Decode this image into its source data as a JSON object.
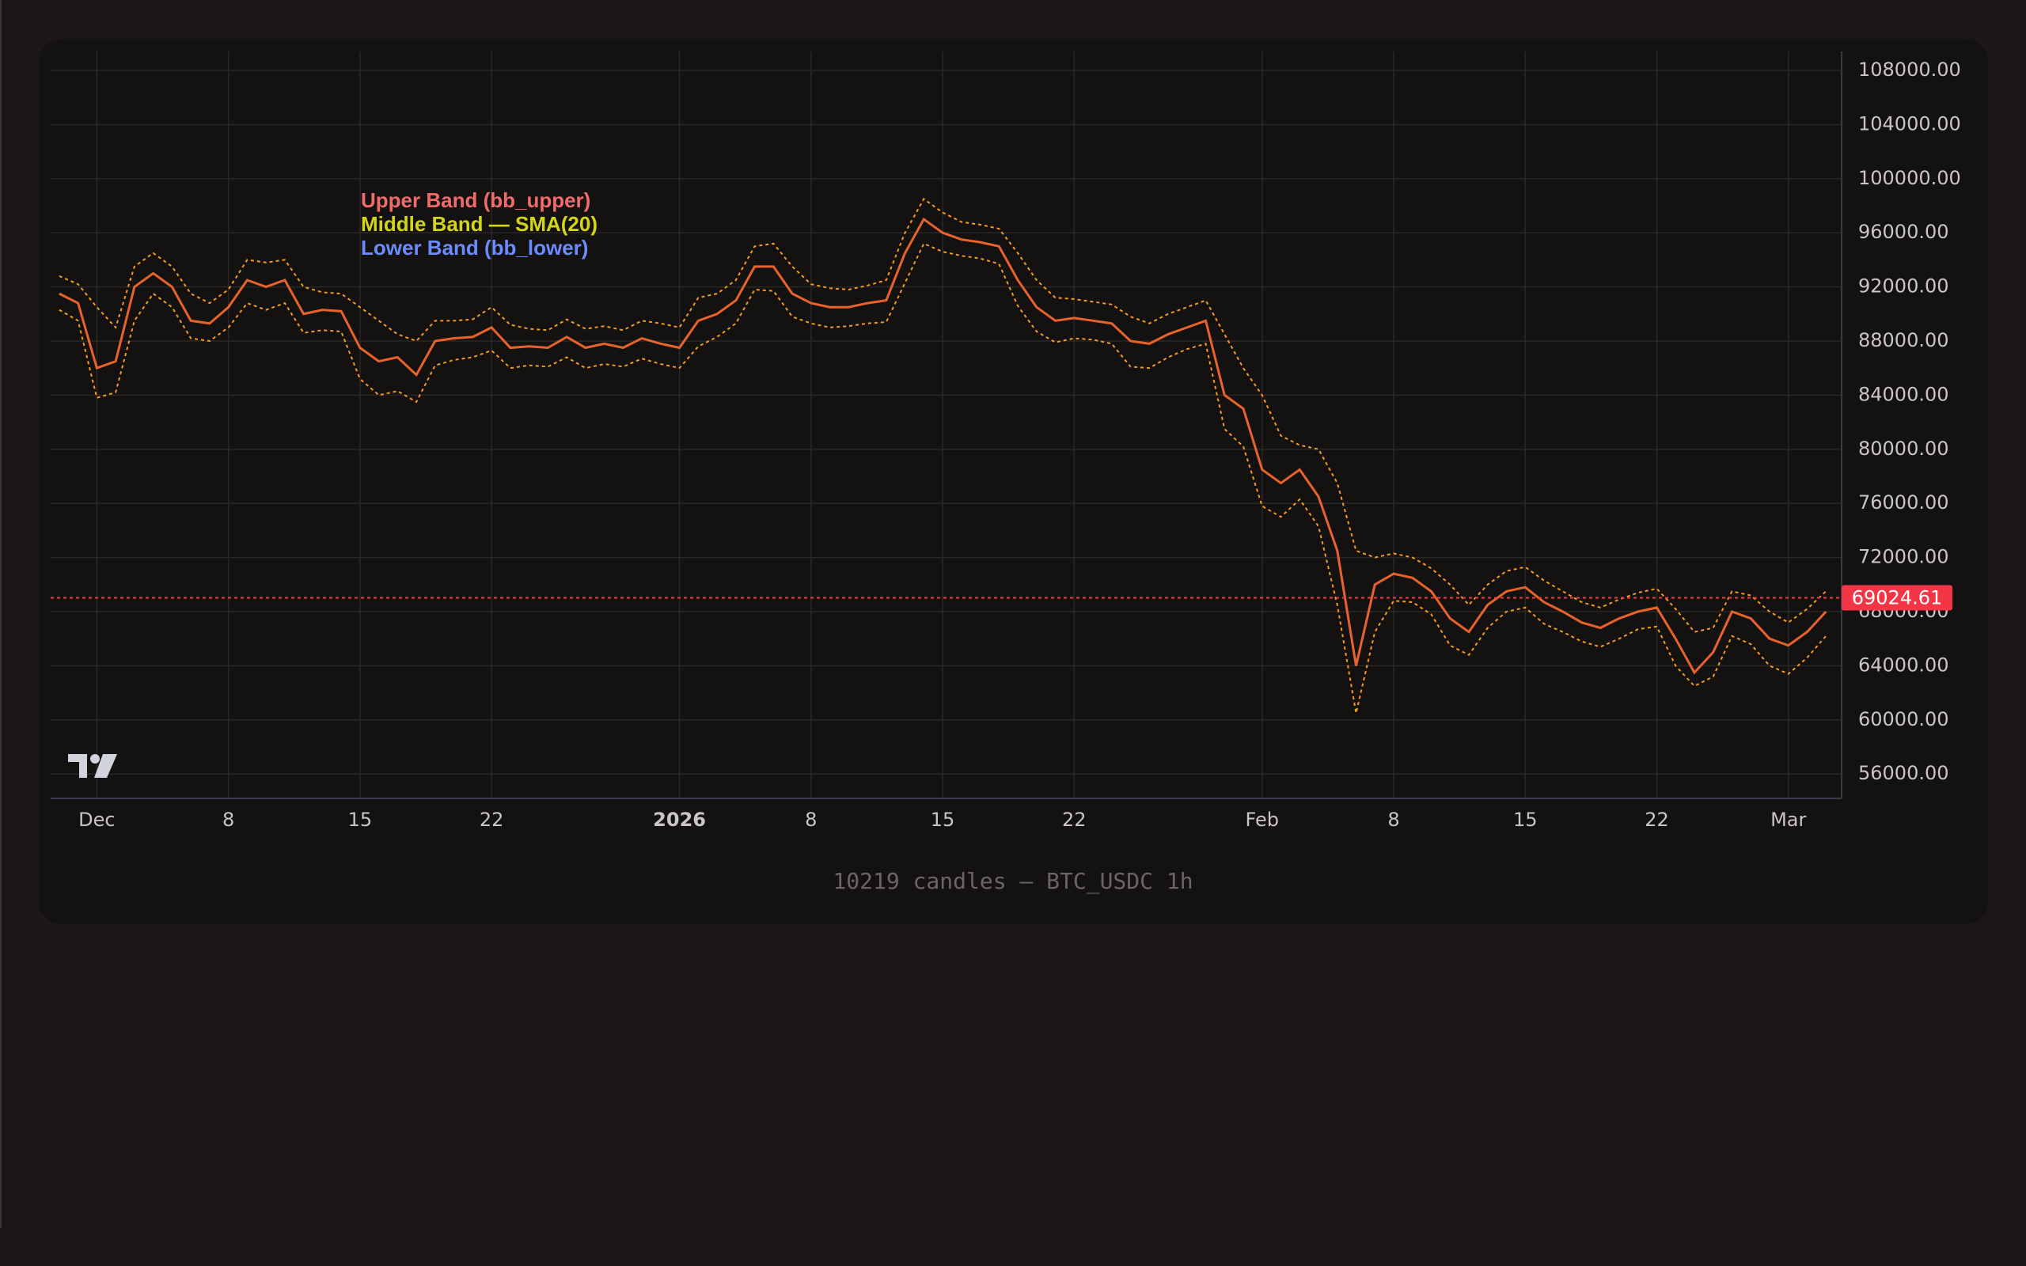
{
  "chart_data": {
    "type": "line",
    "x": [
      "2025-11-29",
      "2025-11-30",
      "2025-12-01",
      "2025-12-02",
      "2025-12-03",
      "2025-12-04",
      "2025-12-05",
      "2025-12-06",
      "2025-12-07",
      "2025-12-08",
      "2025-12-09",
      "2025-12-10",
      "2025-12-11",
      "2025-12-12",
      "2025-12-13",
      "2025-12-14",
      "2025-12-15",
      "2025-12-16",
      "2025-12-17",
      "2025-12-18",
      "2025-12-19",
      "2025-12-20",
      "2025-12-21",
      "2025-12-22",
      "2025-12-23",
      "2025-12-24",
      "2025-12-25",
      "2025-12-26",
      "2025-12-27",
      "2025-12-28",
      "2025-12-29",
      "2025-12-30",
      "2025-12-31",
      "2026-01-01",
      "2026-01-02",
      "2026-01-03",
      "2026-01-04",
      "2026-01-05",
      "2026-01-06",
      "2026-01-07",
      "2026-01-08",
      "2026-01-09",
      "2026-01-10",
      "2026-01-11",
      "2026-01-12",
      "2026-01-13",
      "2026-01-14",
      "2026-01-15",
      "2026-01-16",
      "2026-01-17",
      "2026-01-18",
      "2026-01-19",
      "2026-01-20",
      "2026-01-21",
      "2026-01-22",
      "2026-01-23",
      "2026-01-24",
      "2026-01-25",
      "2026-01-26",
      "2026-01-27",
      "2026-01-28",
      "2026-01-29",
      "2026-01-30",
      "2026-01-31",
      "2026-02-01",
      "2026-02-02",
      "2026-02-03",
      "2026-02-04",
      "2026-02-05",
      "2026-02-06",
      "2026-02-07",
      "2026-02-08",
      "2026-02-09",
      "2026-02-10",
      "2026-02-11",
      "2026-02-12",
      "2026-02-13",
      "2026-02-14",
      "2026-02-15",
      "2026-02-16",
      "2026-02-17",
      "2026-02-18",
      "2026-02-19",
      "2026-02-20",
      "2026-02-21",
      "2026-02-22",
      "2026-02-23",
      "2026-02-24",
      "2026-02-25",
      "2026-02-26",
      "2026-02-27",
      "2026-02-28",
      "2026-03-01",
      "2026-03-02",
      "2026-03-03"
    ],
    "series": [
      {
        "name": "Upper Band (bb_upper)",
        "color": "#f26b6b",
        "line_color": "#f59a23",
        "dashed": true,
        "values": [
          92800,
          92200,
          90500,
          89000,
          93500,
          94500,
          93500,
          91500,
          90800,
          91800,
          94000,
          93800,
          94000,
          92000,
          91600,
          91500,
          90500,
          89500,
          88500,
          88000,
          89500,
          89500,
          89600,
          90500,
          89200,
          88900,
          88800,
          89600,
          88900,
          89100,
          88800,
          89500,
          89300,
          89000,
          91200,
          91500,
          92500,
          95000,
          95200,
          93500,
          92200,
          91900,
          91800,
          92100,
          92500,
          96000,
          98500,
          97500,
          96800,
          96600,
          96300,
          94500,
          92500,
          91200,
          91100,
          90900,
          90700,
          89800,
          89300,
          90000,
          90500,
          91000,
          88500,
          86000,
          84000,
          81000,
          80300,
          80000,
          77500,
          72500,
          72000,
          72300,
          72000,
          71200,
          70000,
          68500,
          70000,
          71000,
          71300,
          70300,
          69500,
          68700,
          68300,
          68900,
          69400,
          69700,
          68200,
          66500,
          66800,
          69500,
          69200,
          68000,
          67200,
          68200,
          69500
        ]
      },
      {
        "name": "Middle Band — SMA(20)",
        "color": "#d4d418",
        "line_color": "#e8632c",
        "dashed": false,
        "values": [
          91500,
          90800,
          86000,
          86500,
          92000,
          93000,
          92000,
          89500,
          89300,
          90500,
          92500,
          92000,
          92500,
          90000,
          90300,
          90200,
          87500,
          86500,
          86800,
          85500,
          88000,
          88200,
          88300,
          89000,
          87500,
          87600,
          87500,
          88300,
          87500,
          87800,
          87500,
          88200,
          87800,
          87500,
          89500,
          90000,
          91000,
          93500,
          93500,
          91500,
          90800,
          90500,
          90500,
          90800,
          91000,
          94500,
          97000,
          96000,
          95500,
          95300,
          95000,
          92500,
          90500,
          89500,
          89700,
          89500,
          89300,
          88000,
          87800,
          88500,
          89000,
          89500,
          84000,
          83000,
          78500,
          77500,
          78500,
          76500,
          72500,
          64000,
          70000,
          70800,
          70500,
          69500,
          67500,
          66500,
          68500,
          69500,
          69800,
          68700,
          68000,
          67200,
          66800,
          67500,
          68000,
          68300,
          66000,
          63500,
          65000,
          68000,
          67500,
          66000,
          65500,
          66500,
          68000
        ]
      },
      {
        "name": "Lower Band (bb_lower)",
        "color": "#6b8cff",
        "line_color": "#f59a23",
        "dashed": true,
        "values": [
          90300,
          89500,
          83800,
          84200,
          89500,
          91500,
          90500,
          88200,
          88000,
          89000,
          90800,
          90300,
          90800,
          88600,
          88800,
          88700,
          85200,
          84000,
          84300,
          83500,
          86200,
          86600,
          86800,
          87300,
          86000,
          86200,
          86100,
          86800,
          86000,
          86300,
          86100,
          86700,
          86300,
          86000,
          87600,
          88300,
          89300,
          91800,
          91700,
          89800,
          89300,
          89000,
          89100,
          89300,
          89400,
          92300,
          95200,
          94600,
          94300,
          94100,
          93700,
          90600,
          88700,
          87900,
          88200,
          88100,
          87800,
          86100,
          86000,
          86800,
          87400,
          87800,
          81500,
          80200,
          75800,
          75000,
          76300,
          74300,
          68500,
          60500,
          66500,
          68800,
          68700,
          67800,
          65500,
          64800,
          66800,
          68000,
          68300,
          67100,
          66500,
          65800,
          65400,
          66000,
          66700,
          66900,
          64000,
          62500,
          63200,
          66200,
          65600,
          64000,
          63400,
          64600,
          66200
        ]
      }
    ],
    "xlim": [
      "2025-11-28T13:00Z",
      "2026-03-03T20:00Z"
    ],
    "xticks": [
      {
        "value": "2025-12-01",
        "label": "Dec"
      },
      {
        "value": "2025-12-08",
        "label": "8"
      },
      {
        "value": "2025-12-15",
        "label": "15"
      },
      {
        "value": "2025-12-22",
        "label": "22"
      },
      {
        "value": "2026-01-01",
        "label": "2026"
      },
      {
        "value": "2026-01-08",
        "label": "8"
      },
      {
        "value": "2026-01-15",
        "label": "15"
      },
      {
        "value": "2026-01-22",
        "label": "22"
      },
      {
        "value": "2026-02-01",
        "label": "Feb"
      },
      {
        "value": "2026-02-08",
        "label": "8"
      },
      {
        "value": "2026-02-15",
        "label": "15"
      },
      {
        "value": "2026-02-22",
        "label": "22"
      },
      {
        "value": "2026-03-01",
        "label": "Mar"
      }
    ],
    "ylim": [
      54200,
      109400
    ],
    "yticks": [
      {
        "value": 56000,
        "label": "56000.00"
      },
      {
        "value": 60000,
        "label": "60000.00"
      },
      {
        "value": 64000,
        "label": "64000.00"
      },
      {
        "value": 68000,
        "label": "68000.00"
      },
      {
        "value": 72000,
        "label": "72000.00"
      },
      {
        "value": 76000,
        "label": "76000.00"
      },
      {
        "value": 80000,
        "label": "80000.00"
      },
      {
        "value": 84000,
        "label": "84000.00"
      },
      {
        "value": 88000,
        "label": "88000.00"
      },
      {
        "value": 92000,
        "label": "92000.00"
      },
      {
        "value": 96000,
        "label": "96000.00"
      },
      {
        "value": 100000,
        "label": "100000.00"
      },
      {
        "value": 104000,
        "label": "104000.00"
      },
      {
        "value": 108000,
        "label": "108000.00"
      }
    ],
    "grid": true,
    "last_price": {
      "value": 69024.61,
      "color": "#f23645"
    },
    "footer": "10219 candles — BTC_USDC 1h"
  }
}
